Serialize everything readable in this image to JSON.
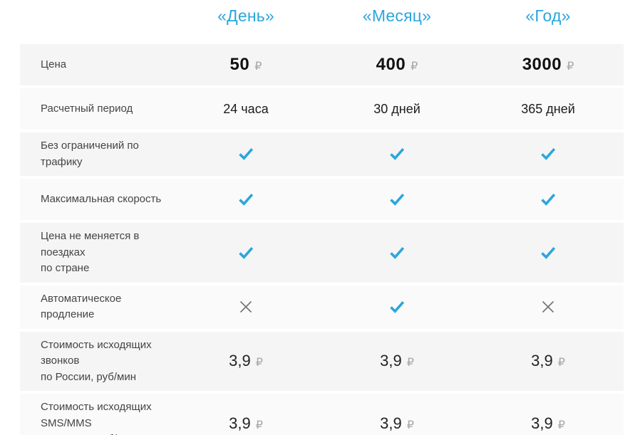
{
  "theme": {
    "accent_blue": "#2ba6dd",
    "cross_gray": "#757575",
    "ruble_gray": "#a6a6a6",
    "row_bg_odd": "#f5f5f5",
    "row_bg_even": "#fafafa"
  },
  "columns": [
    {
      "label": "«День»"
    },
    {
      "label": "«Месяц»"
    },
    {
      "label": "«Год»"
    }
  ],
  "rows": [
    {
      "label": "Цена",
      "type": "price",
      "value_style": "bold",
      "currency": "₽",
      "values": [
        "50",
        "400",
        "3000"
      ]
    },
    {
      "label": "Расчетный период",
      "type": "text",
      "values": [
        "24 часа",
        "30 дней",
        "365 дней"
      ]
    },
    {
      "label": "Без ограничений по трафику",
      "type": "bool",
      "values": [
        true,
        true,
        true
      ]
    },
    {
      "label": "Максимальная скорость",
      "type": "bool",
      "values": [
        true,
        true,
        true
      ]
    },
    {
      "label": "Цена не меняется в поездках\nпо стране",
      "type": "bool",
      "values": [
        true,
        true,
        true
      ]
    },
    {
      "label": "Автоматическое продление",
      "type": "bool",
      "values": [
        false,
        true,
        false
      ]
    },
    {
      "label": "Стоимость исходящих звонков\nпо России, руб/мин",
      "type": "price",
      "value_style": "regular",
      "currency": "₽",
      "values": [
        "3,9",
        "3,9",
        "3,9"
      ]
    },
    {
      "label": "Стоимость исходящих SMS/MMS\nпо России, руб/шт",
      "type": "price",
      "value_style": "regular",
      "currency": "₽",
      "values": [
        "3,9",
        "3,9",
        "3,9"
      ]
    }
  ]
}
